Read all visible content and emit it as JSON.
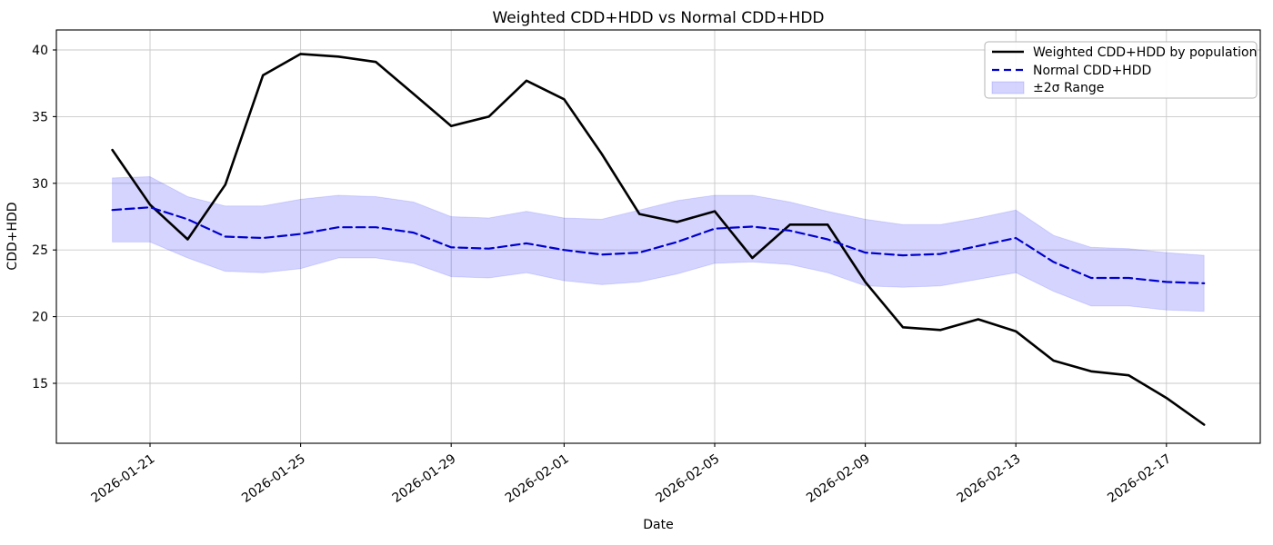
{
  "chart_data": {
    "type": "line",
    "title": "Weighted CDD+HDD vs Normal CDD+HDD",
    "xlabel": "Date",
    "ylabel": "CDD+HDD",
    "grid": true,
    "legend_position": "upper right",
    "ylim": [
      10.6,
      41.5
    ],
    "yticks": [
      15,
      20,
      25,
      30,
      35,
      40
    ],
    "xticks": [
      {
        "label": "2026-01-21",
        "day_index": 1
      },
      {
        "label": "2026-01-25",
        "day_index": 5
      },
      {
        "label": "2026-01-29",
        "day_index": 9
      },
      {
        "label": "2026-02-01",
        "day_index": 12
      },
      {
        "label": "2026-02-05",
        "day_index": 16
      },
      {
        "label": "2026-02-09",
        "day_index": 20
      },
      {
        "label": "2026-02-13",
        "day_index": 24
      },
      {
        "label": "2026-02-17",
        "day_index": 28
      }
    ],
    "x": [
      "2026-01-20",
      "2026-01-21",
      "2026-01-22",
      "2026-01-23",
      "2026-01-24",
      "2026-01-25",
      "2026-01-26",
      "2026-01-27",
      "2026-01-28",
      "2026-01-29",
      "2026-01-30",
      "2026-01-31",
      "2026-02-01",
      "2026-02-02",
      "2026-02-03",
      "2026-02-04",
      "2026-02-05",
      "2026-02-06",
      "2026-02-07",
      "2026-02-08",
      "2026-02-09",
      "2026-02-10",
      "2026-02-11",
      "2026-02-12",
      "2026-02-13",
      "2026-02-14",
      "2026-02-15",
      "2026-02-16",
      "2026-02-17",
      "2026-02-18"
    ],
    "series": [
      {
        "name": "Weighted CDD+HDD by population",
        "style": "solid",
        "color": "#000000",
        "values": [
          32.5,
          28.4,
          25.8,
          29.9,
          38.1,
          39.7,
          39.5,
          39.1,
          36.7,
          34.3,
          35.0,
          37.7,
          36.3,
          32.2,
          27.7,
          27.1,
          27.9,
          24.4,
          26.9,
          26.9,
          22.6,
          19.2,
          19.0,
          19.8,
          18.9,
          16.7,
          15.9,
          15.6,
          13.9,
          11.9
        ]
      },
      {
        "name": "Normal CDD+HDD",
        "style": "dashed",
        "color": "#0000cc",
        "values": [
          28.0,
          28.2,
          27.3,
          26.0,
          25.9,
          26.2,
          26.7,
          26.7,
          26.3,
          25.2,
          25.1,
          25.5,
          25.0,
          24.65,
          24.8,
          25.6,
          26.6,
          26.75,
          26.45,
          25.8,
          24.8,
          24.6,
          24.7,
          25.3,
          25.9,
          24.1,
          22.9,
          22.9,
          22.6,
          22.5
        ]
      }
    ],
    "band": {
      "name": "±2σ Range",
      "color": "#0000ff",
      "opacity": 0.17,
      "upper": [
        30.4,
        30.5,
        29.0,
        28.3,
        28.3,
        28.8,
        29.1,
        29.0,
        28.6,
        27.5,
        27.4,
        27.9,
        27.4,
        27.3,
        28.0,
        28.7,
        29.1,
        29.1,
        28.6,
        27.9,
        27.3,
        26.9,
        26.9,
        27.4,
        28.0,
        26.1,
        25.2,
        25.1,
        24.8,
        24.6
      ],
      "lower": [
        25.6,
        25.6,
        24.4,
        23.4,
        23.3,
        23.6,
        24.4,
        24.4,
        24.0,
        23.0,
        22.9,
        23.3,
        22.7,
        22.4,
        22.6,
        23.2,
        24.0,
        24.1,
        23.9,
        23.3,
        22.3,
        22.2,
        22.3,
        22.8,
        23.3,
        21.9,
        20.8,
        20.8,
        20.5,
        20.4
      ]
    },
    "colors": {
      "grid": "#c9c9c9",
      "spine": "#000000",
      "legend_border": "#b3b3b3",
      "background": "#ffffff"
    }
  }
}
